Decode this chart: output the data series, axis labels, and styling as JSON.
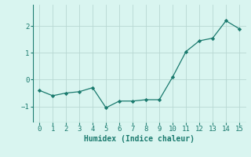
{
  "x": [
    0,
    1,
    2,
    3,
    4,
    5,
    6,
    7,
    8,
    9,
    10,
    11,
    12,
    13,
    14,
    15
  ],
  "y": [
    -0.4,
    -0.6,
    -0.5,
    -0.45,
    -0.3,
    -1.05,
    -0.8,
    -0.8,
    -0.75,
    -0.75,
    0.1,
    1.05,
    1.45,
    1.55,
    2.2,
    1.9
  ],
  "line_color": "#1a7a6e",
  "marker": "D",
  "marker_size": 2.2,
  "bg_color": "#d9f5f0",
  "grid_color": "#b8d8d3",
  "xlabel": "Humidex (Indice chaleur)",
  "ylim": [
    -1.6,
    2.8
  ],
  "xlim": [
    -0.5,
    15.5
  ],
  "yticks": [
    -1,
    0,
    1,
    2
  ],
  "xticks": [
    0,
    1,
    2,
    3,
    4,
    5,
    6,
    7,
    8,
    9,
    10,
    11,
    12,
    13,
    14,
    15
  ],
  "xlabel_fontsize": 7,
  "tick_fontsize": 6.5
}
